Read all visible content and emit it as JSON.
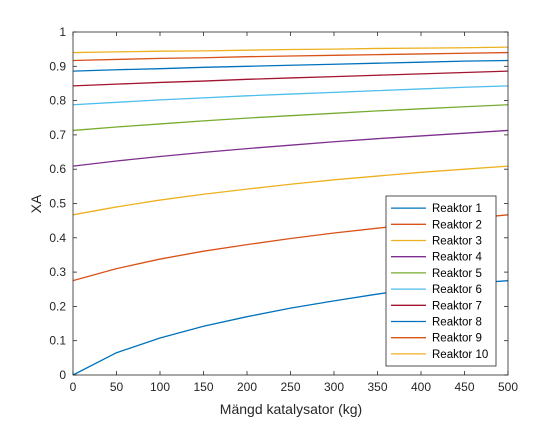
{
  "chart_data": {
    "type": "line",
    "title": "",
    "xlabel": "Mängd katalysator (kg)",
    "ylabel": "XA",
    "xlim": [
      0,
      500
    ],
    "ylim": [
      0,
      1
    ],
    "xticks": [
      0,
      50,
      100,
      150,
      200,
      250,
      300,
      350,
      400,
      450,
      500
    ],
    "yticks": [
      0,
      0.1,
      0.2,
      0.3,
      0.4,
      0.5,
      0.6,
      0.7,
      0.8,
      0.9,
      1
    ],
    "grid": false,
    "legend_position": "bottom-right",
    "x": [
      0,
      50,
      100,
      150,
      200,
      250,
      300,
      350,
      400,
      450,
      500
    ],
    "series": [
      {
        "name": "Reaktor 1",
        "color": "#0072BD",
        "values": [
          0.0,
          0.065,
          0.108,
          0.142,
          0.17,
          0.195,
          0.216,
          0.236,
          0.254,
          0.266,
          0.275
        ]
      },
      {
        "name": "Reaktor 2",
        "color": "#D95319",
        "values": [
          0.275,
          0.31,
          0.338,
          0.361,
          0.38,
          0.398,
          0.414,
          0.428,
          0.442,
          0.455,
          0.467
        ]
      },
      {
        "name": "Reaktor 3",
        "color": "#EDB120",
        "values": [
          0.467,
          0.49,
          0.51,
          0.527,
          0.542,
          0.556,
          0.569,
          0.58,
          0.591,
          0.6,
          0.609
        ]
      },
      {
        "name": "Reaktor 4",
        "color": "#7E2F8E",
        "values": [
          0.609,
          0.624,
          0.637,
          0.649,
          0.66,
          0.67,
          0.68,
          0.689,
          0.697,
          0.705,
          0.713
        ]
      },
      {
        "name": "Reaktor 5",
        "color": "#77AC30",
        "values": [
          0.713,
          0.723,
          0.732,
          0.741,
          0.749,
          0.756,
          0.763,
          0.77,
          0.776,
          0.782,
          0.788
        ]
      },
      {
        "name": "Reaktor 6",
        "color": "#4DBEEE",
        "values": [
          0.788,
          0.795,
          0.802,
          0.808,
          0.814,
          0.819,
          0.824,
          0.829,
          0.834,
          0.839,
          0.843
        ]
      },
      {
        "name": "Reaktor 7",
        "color": "#A2142F",
        "values": [
          0.843,
          0.848,
          0.853,
          0.857,
          0.862,
          0.866,
          0.87,
          0.874,
          0.878,
          0.882,
          0.886
        ]
      },
      {
        "name": "Reaktor 8",
        "color": "#0072BD",
        "values": [
          0.886,
          0.89,
          0.893,
          0.897,
          0.9,
          0.903,
          0.906,
          0.909,
          0.912,
          0.915,
          0.917
        ]
      },
      {
        "name": "Reaktor 9",
        "color": "#D95319",
        "values": [
          0.917,
          0.92,
          0.923,
          0.925,
          0.928,
          0.93,
          0.932,
          0.934,
          0.936,
          0.938,
          0.94
        ]
      },
      {
        "name": "Reaktor 10",
        "color": "#EDB120",
        "values": [
          0.94,
          0.942,
          0.944,
          0.945,
          0.947,
          0.949,
          0.95,
          0.952,
          0.953,
          0.954,
          0.956
        ]
      }
    ]
  }
}
